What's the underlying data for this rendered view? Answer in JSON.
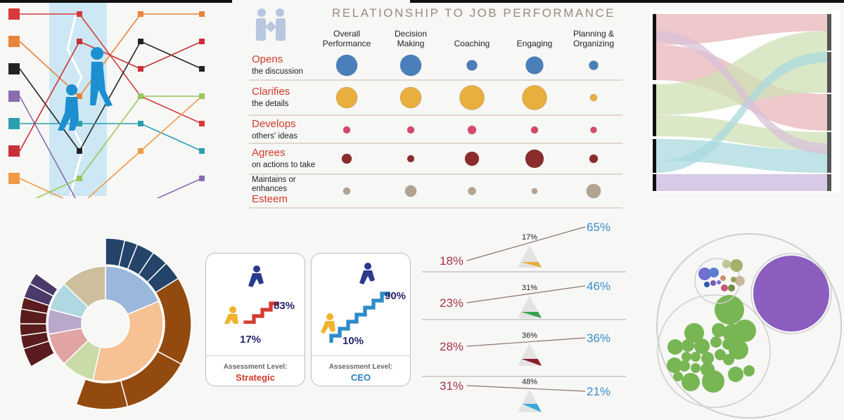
{
  "colors": {
    "red": "#cf3b2a",
    "dark": "#3a2a2a",
    "blue": "#4a7fba",
    "gold": "#e8ae3e",
    "pink": "#d9476a",
    "maroon": "#8c2c2c",
    "tan": "#b5a392",
    "accent_blue": "#3a8ec9",
    "accent_maroon": "#a3334a"
  },
  "bubble_chart": {
    "title": "RELATIONSHIP TO JOB PERFORMANCE",
    "columns": [
      "Overall Performance",
      "Decision Making",
      "Coaching",
      "Engaging",
      "Planning & Organizing"
    ],
    "rows": [
      {
        "highlight": "Opens",
        "sub": "the discussion",
        "order": "highlight-first",
        "color": "#4a7fba",
        "sizes": [
          3,
          3,
          1.5,
          2.5,
          1.3
        ]
      },
      {
        "highlight": "Clarifies",
        "sub": "the details",
        "order": "highlight-first",
        "color": "#e8ae3e",
        "sizes": [
          3,
          3,
          3.5,
          3.5,
          1
        ]
      },
      {
        "highlight": "Develops",
        "sub": "others' ideas",
        "order": "highlight-first",
        "color": "#d9476a",
        "sizes": [
          1,
          1,
          1.2,
          1,
          0.9
        ]
      },
      {
        "highlight": "Agrees",
        "sub": "on actions to take",
        "order": "highlight-first",
        "color": "#8c2c2c",
        "sizes": [
          1.4,
          1,
          2,
          2.6,
          1.2
        ]
      },
      {
        "highlight": "Esteem",
        "sub": "Maintains or enhances",
        "order": "sub-first",
        "color": "#b5a392",
        "sizes": [
          1,
          1.6,
          1.1,
          0.8,
          2
        ]
      }
    ]
  },
  "stairs": [
    {
      "top_pct": "83%",
      "bottom_pct": "17%",
      "caption": "Assessment Level:",
      "level": "Strategic",
      "stair_color": "#d63b2f",
      "level_color": "#cf3b2a"
    },
    {
      "top_pct": "90%",
      "bottom_pct": "10%",
      "caption": "Assessment Level:",
      "level": "CEO",
      "stair_color": "#2a8ccc",
      "level_color": "#2a7fbf"
    }
  ],
  "seesaws": [
    {
      "left": "18%",
      "mid": "17%",
      "right": "65%",
      "color": "#e8ae3e"
    },
    {
      "left": "23%",
      "mid": "31%",
      "right": "46%",
      "color": "#3aa24a"
    },
    {
      "left": "28%",
      "mid": "36%",
      "right": "36%",
      "color": "#8c1c2c"
    },
    {
      "left": "31%",
      "mid": "48%",
      "right": "21%",
      "color": "#39a9d9"
    }
  ],
  "chart_data": [
    {
      "type": "bump",
      "series": [
        {
          "color": "#d63a3a",
          "ranks": [
            1,
            1,
            4,
            5
          ]
        },
        {
          "color": "#e8833a",
          "ranks": [
            2,
            4,
            1,
            1
          ]
        },
        {
          "color": "#222222",
          "ranks": [
            3,
            6,
            2,
            3
          ]
        },
        {
          "color": "#8a6bb1",
          "ranks": [
            4,
            8,
            8,
            7
          ]
        },
        {
          "color": "#2a9fae",
          "ranks": [
            5,
            5,
            5,
            6
          ]
        },
        {
          "color": "#c93038",
          "ranks": [
            6,
            2,
            3,
            2
          ]
        },
        {
          "color": "#f09a45",
          "ranks": [
            7,
            8,
            6,
            4
          ]
        },
        {
          "color": "#9ac45a",
          "ranks": [
            8,
            7,
            4,
            4
          ]
        }
      ]
    },
    {
      "type": "bubble",
      "note": "see bubble_chart for values"
    },
    {
      "type": "sankey",
      "left_nodes": 4,
      "right_nodes": 5
    },
    {
      "type": "sunburst",
      "inner": [
        {
          "color": "#9bb7dc",
          "value": 16
        },
        {
          "color": "#f6c193",
          "value": 30
        },
        {
          "color": "#c9dca7",
          "value": 8
        },
        {
          "color": "#e1a4a2",
          "value": 8
        },
        {
          "color": "#b9a8cc",
          "value": 6
        },
        {
          "color": "#b0d8e2",
          "value": 7
        },
        {
          "color": "#cdbf9c",
          "value": 11
        }
      ]
    },
    {
      "type": "circle-packing",
      "groups": [
        "purple",
        "green",
        "mixed"
      ]
    }
  ]
}
